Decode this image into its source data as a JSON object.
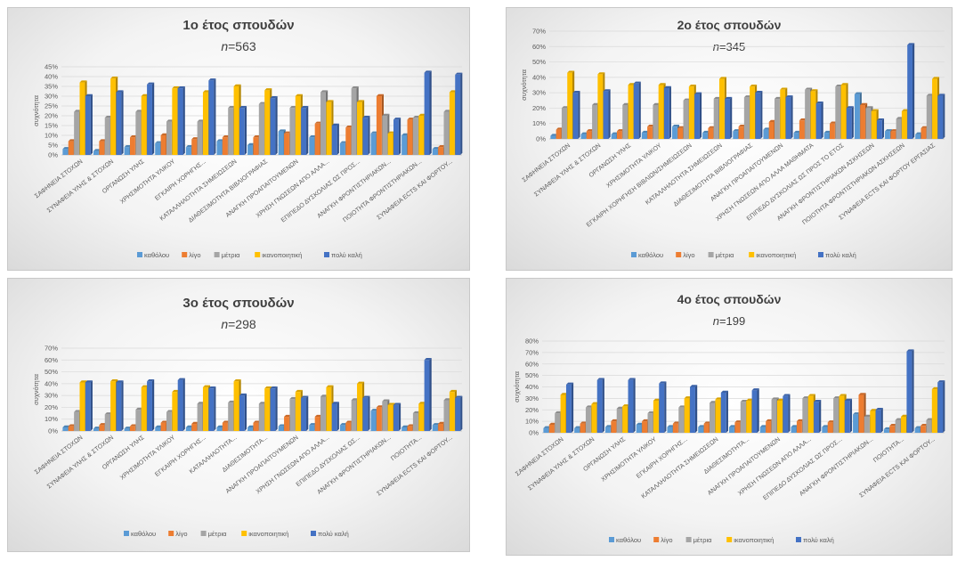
{
  "colors": {
    "καθόλου": "#5b9bd5",
    "λίγο": "#ed7d31",
    "μέτρια": "#a5a5a5",
    "ικανοποιητική": "#ffc000",
    "πολύ καλή": "#4472c4"
  },
  "chart_data": [
    {
      "type": "bar",
      "title": "1ο έτος σπουδών",
      "n_label": "n",
      "n_value": "=563",
      "ylabel": "συχνότητα",
      "ylim": [
        0,
        45
      ],
      "yticks": [
        "0%",
        "5%",
        "10%",
        "15%",
        "20%",
        "25%",
        "30%",
        "35%",
        "40%",
        "45%"
      ],
      "categories": [
        "ΣΑΦΗΝΕΙΑ ΣΤΟΧΩΝ",
        "ΣΥΝΑΦΕΙΑ ΥΛΗΣ & ΣΤΟΧΩΝ",
        "ΟΡΓΑΝΩΣΗ ΥΛΗΣ",
        "ΧΡΗΣΙΜΟΤΗΤΑ ΥΛΙΚΟΥ",
        "ΕΓΚΑΙΡΗ ΧΟΡΗΓΗΣ...",
        "ΚΑΤΑΛΛΗΛΟΤΗΤΑ ΣΗΜΕΙΩΣΕΩΝ",
        "ΔΙΑΘΕΣΙΜΟΤΗΤΑ ΒΙΒΛΙΟΓΡΑΦΙΑΣ",
        "ΑΝΑΓΚΗ ΠΡΟΑΠΑΙΤΟΥΜΕΝΩΝ",
        "ΧΡΗΣΗ ΓΝΩΣΕΩΝ ΑΠΟ ΑΛΛΑ...",
        "ΕΠΙΠΕΔΟ ΔΥΣΚΟΛΙΑΣ ΩΣ ΠΡΟΣ...",
        "ΑΝΑΓΚΗ ΦΡΟΝΤΙΣΤΗΡΙΑΚΩΝ...",
        "ΠΟΙΟΤΗΤΑ ΦΡΟΝΤΙΣΤΗΡΙΑΚΩΝ...",
        "ΣΥΝΑΦΕΙΑ ECTS ΚΑΙ ΦΟΡΤΟΥ..."
      ],
      "series": [
        {
          "name": "καθόλου",
          "values": [
            3,
            2,
            4,
            6,
            4,
            7,
            5,
            12,
            9,
            6,
            11,
            10,
            3
          ]
        },
        {
          "name": "λίγο",
          "values": [
            7,
            7,
            9,
            10,
            8,
            9,
            9,
            11,
            16,
            14,
            30,
            18,
            4
          ]
        },
        {
          "name": "μέτρια",
          "values": [
            22,
            19,
            22,
            17,
            17,
            24,
            26,
            24,
            32,
            34,
            20,
            19,
            22
          ]
        },
        {
          "name": "ικανοποιητική",
          "values": [
            37,
            39,
            30,
            34,
            32,
            35,
            33,
            30,
            27,
            27,
            11,
            20,
            32
          ]
        },
        {
          "name": "πολύ καλή",
          "values": [
            30,
            32,
            36,
            34,
            38,
            24,
            29,
            24,
            15,
            19,
            18,
            42,
            41
          ]
        }
      ],
      "legend": "bottom"
    },
    {
      "type": "bar",
      "title": "2ο έτος σπουδών",
      "n_label": "n",
      "n_value": "=345",
      "ylabel": "συχνότητα",
      "ylim": [
        0,
        70
      ],
      "yticks": [
        "0%",
        "10%",
        "20%",
        "30%",
        "40%",
        "50%",
        "60%",
        "70%"
      ],
      "categories": [
        "ΣΑΦΗΝΕΙΑ ΣΤΟΧΩΝ",
        "ΣΥΝΑΦΕΙΑ ΥΛΗΣ & ΣΤΟΧΩΝ",
        "ΟΡΓΑΝΩΣΗ ΥΛΗΣ",
        "ΧΡΗΣΙΜΟΤΗΤΑ ΥΛΙΚΟΥ",
        "ΕΓΚΑΙΡΗ ΧΟΡΗΓΗΣΗ ΒΙΒΛΙΩΝ/ΣΗΜΕΙΩΣΕΩΝ",
        "ΚΑΤΑΛΛΗΛΟΤΗΤΑ ΣΗΜΕΙΩΣΕΩΝ",
        "ΔΙΑΘΕΣΙΜΟΤΗΤΑ ΒΙΒΛΙΟΓΡΑΦΙΑΣ",
        "ΑΝΑΓΚΗ ΠΡΟΑΠΑΙΤΟΥΜΕΝΩΝ",
        "ΧΡΗΣΗ ΓΝΩΣΕΩΝ ΑΠΟ ΑΛΛΑ ΜΑΘΗΜΑΤΑ",
        "ΕΠΙΠΕΔΟ ΔΥΣΚΟΛΙΑΣ ΩΣ ΠΡΟΣ ΤΟ ΕΤΟΣ",
        "ΑΝΑΓΚΗ ΦΡΟΝΤΙΣΤΗΡΙΑΚΩΝ ΑΣΚΗΣΕΩΝ",
        "ΠΟΙΟΤΗΤΑ ΦΡΟΝΤΙΣΤΗΡΙΑΚΩΝ ΑΣΚΗΣΕΩΝ",
        "ΣΥΝΑΦΕΙΑ ECTS ΚΑΙ ΦΟΡΤΟΥ ΕΡΓΑΣΙΑΣ"
      ],
      "series": [
        {
          "name": "καθόλου",
          "values": [
            2,
            3,
            3,
            4,
            8,
            4,
            5,
            6,
            4,
            4,
            29,
            5,
            3
          ]
        },
        {
          "name": "λίγο",
          "values": [
            6,
            5,
            5,
            8,
            7,
            7,
            8,
            11,
            12,
            10,
            22,
            5,
            7
          ]
        },
        {
          "name": "μέτρια",
          "values": [
            20,
            22,
            22,
            22,
            25,
            26,
            27,
            26,
            32,
            34,
            20,
            13,
            28
          ]
        },
        {
          "name": "ικανοποιητική",
          "values": [
            43,
            42,
            35,
            35,
            34,
            39,
            34,
            32,
            31,
            35,
            18,
            18,
            39
          ]
        },
        {
          "name": "πολύ καλή",
          "values": [
            30,
            31,
            36,
            33,
            29,
            26,
            30,
            27,
            23,
            20,
            12,
            61,
            28
          ]
        }
      ],
      "legend": "bottom"
    },
    {
      "type": "bar",
      "title": "3ο έτος σπουδών",
      "n_label": "n",
      "n_value": "=298",
      "ylabel": "συχνότητα",
      "ylim": [
        0,
        70
      ],
      "yticks": [
        "0%",
        "10%",
        "20%",
        "30%",
        "40%",
        "50%",
        "60%",
        "70%"
      ],
      "categories": [
        "ΣΑΦΗΝΕΙΑ ΣΤΟΧΩΝ",
        "ΣΥΝΑΦΕΙΑ ΥΛΗΣ & ΣΤΟΧΩΝ",
        "ΟΡΓΑΝΩΣΗ ΥΛΗΣ",
        "ΧΡΗΣΙΜΟΤΗΤΑ ΥΛΙΚΟΥ",
        "ΕΓΚΑΙΡΗ ΧΟΡΗΓΗΣ...",
        "ΚΑΤΑΛΛΗΛΟΤΗΤΑ...",
        "ΔΙΑΘΕΣΙΜΟΤΗΤΑ...",
        "ΑΝΑΓΚΗ ΠΡΟΑΠΑΙΤΟΥΜΕΝΩΝ",
        "ΧΡΗΣΗ ΓΝΩΣΕΩΝ ΑΠΟ ΑΛΛΑ...",
        "ΕΠΙΠΕΔΟ ΔΥΣΚΟΛΙΑΣ ΩΣ...",
        "ΑΝΑΓΚΗ ΦΡΟΝΤΙΣΤΗΡΙΑΚΩΝ...",
        "ΠΟΙΟΤΗΤΑ...",
        "ΣΥΝΑΦΕΙΑ ECTS ΚΑΙ ΦΟΡΤΟΥ..."
      ],
      "series": [
        {
          "name": "καθόλου",
          "values": [
            3,
            2,
            2,
            3,
            3,
            3,
            3,
            4,
            5,
            5,
            17,
            3,
            5
          ]
        },
        {
          "name": "λίγο",
          "values": [
            4,
            5,
            4,
            7,
            6,
            7,
            7,
            12,
            12,
            7,
            20,
            4,
            6
          ]
        },
        {
          "name": "μέτρια",
          "values": [
            16,
            14,
            18,
            16,
            23,
            24,
            23,
            27,
            29,
            26,
            25,
            15,
            26
          ]
        },
        {
          "name": "ικανοποιητική",
          "values": [
            41,
            42,
            37,
            33,
            37,
            42,
            36,
            33,
            37,
            40,
            22,
            23,
            33
          ]
        },
        {
          "name": "πολύ καλή",
          "values": [
            41,
            41,
            42,
            43,
            36,
            30,
            36,
            28,
            23,
            28,
            22,
            60,
            28
          ]
        }
      ],
      "legend": "bottom"
    },
    {
      "type": "bar",
      "title": "4ο έτος σπουδών",
      "n_label": "n",
      "n_value": "=199",
      "ylabel": "συχνότητα",
      "ylim": [
        0,
        80
      ],
      "yticks": [
        "0%",
        "10%",
        "20%",
        "30%",
        "40%",
        "50%",
        "60%",
        "70%",
        "80%"
      ],
      "categories": [
        "ΣΑΦΗΝΕΙΑ ΣΤΟΧΩΝ",
        "ΣΥΝΑΦΕΙΑ ΥΛΗΣ & ΣΤΟΧΩΝ",
        "ΟΡΓΑΝΩΣΗ ΥΛΗΣ",
        "ΧΡΗΣΙΜΟΤΗΤΑ ΥΛΙΚΟΥ",
        "ΕΓΚΑΙΡΗ ΧΟΡΗΓΗΣ...",
        "ΚΑΤΑΛΛΗΛΟΤΗΤΑ ΣΗΜΕΙΩΣΕΩΝ",
        "ΔΙΑΘΕΣΙΜΟΤΗΤΑ...",
        "ΑΝΑΓΚΗ ΠΡΟΑΠΑΙΤΟΥΜΕΝΩΝ",
        "ΧΡΗΣΗ ΓΝΩΣΕΩΝ ΑΠΟ ΑΛΛΑ...",
        "ΕΠΙΠΕΔΟ ΔΥΣΚΟΛΙΑΣ ΩΣ ΠΡΟΣ...",
        "ΑΝΑΓΚΗ ΦΡΟΝΤΙΣΤΗΡΙΑΚΩΝ...",
        "ΠΟΙΟΤΗΤΑ...",
        "ΣΥΝΑΦΕΙΑ ECTS ΚΑΙ ΦΟΡΤΟΥ..."
      ],
      "series": [
        {
          "name": "καθόλου",
          "values": [
            4,
            4,
            5,
            7,
            5,
            5,
            5,
            5,
            5,
            5,
            16,
            3,
            4
          ]
        },
        {
          "name": "λίγο",
          "values": [
            7,
            8,
            10,
            10,
            8,
            8,
            9,
            10,
            10,
            9,
            33,
            6,
            6
          ]
        },
        {
          "name": "μέτρια",
          "values": [
            17,
            22,
            21,
            17,
            22,
            26,
            27,
            29,
            30,
            30,
            14,
            11,
            11
          ]
        },
        {
          "name": "ικανοποιητική",
          "values": [
            33,
            25,
            23,
            28,
            30,
            29,
            28,
            28,
            32,
            32,
            19,
            14,
            38
          ]
        },
        {
          "name": "πολύ καλή",
          "values": [
            42,
            46,
            46,
            43,
            40,
            35,
            37,
            32,
            27,
            28,
            20,
            71,
            44
          ]
        }
      ],
      "legend": "bottom"
    }
  ]
}
